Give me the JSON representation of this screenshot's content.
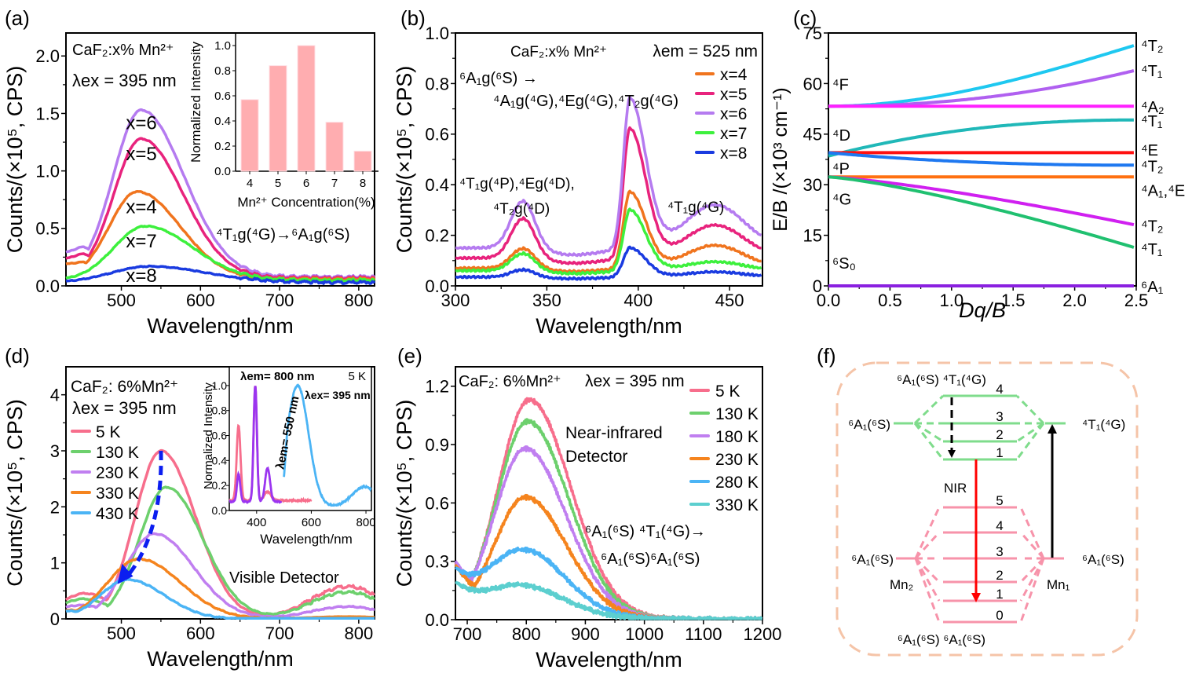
{
  "chart_data": [
    {
      "panel": "(a)",
      "type": "line",
      "title": "",
      "xlabel": "Wavelength/nm",
      "ylabel": "Counts/(×10⁵, CPS)",
      "xlim": [
        430,
        820
      ],
      "ylim": [
        0,
        2.2
      ],
      "xticks": [
        500,
        600,
        700,
        800
      ],
      "yticks": [
        0.0,
        0.5,
        1.0,
        1.5,
        2.0
      ],
      "ytick_labels": [
        "0.0",
        "0.5",
        "1.0",
        "1.5",
        "2.0"
      ],
      "annotations": {
        "sample": "CaF₂:x% Mn²⁺",
        "excitation": "λex = 395 nm",
        "transition": "⁴T₁g(⁴G)→⁶A₁g(⁶S)"
      },
      "series": [
        {
          "name": "x=6",
          "label": "x=6",
          "color": "#b57bf0",
          "peak_nm": 525,
          "peak": 1.53,
          "width": 45,
          "base_start": 0.27,
          "tail": 0.08,
          "shoulder": 0.12
        },
        {
          "name": "x=5",
          "label": "x=5",
          "color": "#e8237d",
          "peak_nm": 525,
          "peak": 1.28,
          "width": 44,
          "base_start": 0.22,
          "tail": 0.07,
          "shoulder": 0.1
        },
        {
          "name": "x=4",
          "label": "x=4",
          "color": "#f0741e",
          "peak_nm": 520,
          "peak": 0.82,
          "width": 45,
          "base_start": 0.18,
          "tail": 0.06,
          "shoulder": 0.06
        },
        {
          "name": "x=7",
          "label": "x=7",
          "color": "#3df03d",
          "peak_nm": 530,
          "peak": 0.52,
          "width": 50,
          "base_start": 0.05,
          "tail": 0.05,
          "shoulder": 0.0
        },
        {
          "name": "x=8",
          "label": "x=8",
          "color": "#1a3be0",
          "peak_nm": 535,
          "peak": 0.17,
          "width": 60,
          "base_start": 0.04,
          "tail": 0.03,
          "shoulder": 0.0
        }
      ],
      "inset": {
        "type": "bar",
        "xlabel": "Mn²⁺ Concentration(%)",
        "ylabel": "Normalized Intensity",
        "categories": [
          "4",
          "5",
          "6",
          "7",
          "8"
        ],
        "values": [
          0.57,
          0.84,
          1.0,
          0.39,
          0.16
        ],
        "ylim": [
          0,
          1.1
        ],
        "yticks": [
          "0.0",
          "0.2",
          "0.4",
          "0.6",
          "0.8",
          "1.0"
        ],
        "color": "#ffadb0"
      }
    },
    {
      "panel": "(b)",
      "type": "line",
      "xlabel": "Wavelength/nm",
      "ylabel": "Counts/(×10⁵, CPS)",
      "xlim": [
        300,
        468
      ],
      "ylim": [
        0,
        1.0
      ],
      "xticks": [
        300,
        350,
        400,
        450
      ],
      "yticks": [
        0.0,
        0.2,
        0.4,
        0.6,
        0.8,
        1.0
      ],
      "ytick_labels": [
        "0.0",
        "0.2",
        "0.4",
        "0.6",
        "0.8",
        "1.0"
      ],
      "annotations": {
        "sample": "CaF₂:x% Mn²⁺",
        "emission": "λem = 525 nm",
        "transition_line1": "⁶A₁g(⁶S) →",
        "transition_line2": "⁴A₁g(⁴G),⁴Eg(⁴G),⁴T₂g(⁴G)",
        "band1_line1": "⁴T₁g(⁴P),⁴Eg(⁴D),",
        "band1_line2": "⁴T₂g(⁴D)",
        "band3": "⁴T₁g(⁴G)"
      },
      "legend_position": "top-right",
      "series": [
        {
          "name": "x=4",
          "color": "#f0741e",
          "base": 0.07,
          "p1": 0.15,
          "p2": 0.37,
          "p3": 0.16,
          "end": 0.11
        },
        {
          "name": "x=5",
          "color": "#e8237d",
          "base": 0.11,
          "p1": 0.27,
          "p2": 0.62,
          "p3": 0.24,
          "end": 0.14
        },
        {
          "name": "x=6",
          "color": "#b57bf0",
          "base": 0.15,
          "p1": 0.34,
          "p2": 0.74,
          "p3": 0.32,
          "end": 0.22
        },
        {
          "name": "x=7",
          "color": "#3df03d",
          "base": 0.06,
          "p1": 0.13,
          "p2": 0.3,
          "p3": 0.095,
          "end": 0.05
        },
        {
          "name": "x=8",
          "color": "#1a3be0",
          "base": 0.035,
          "p1": 0.065,
          "p2": 0.15,
          "p3": 0.055,
          "end": 0.03
        }
      ]
    },
    {
      "panel": "(c)",
      "type": "line",
      "xlabel": "Dq/B",
      "ylabel": "E/B /(×10³ cm⁻¹)",
      "xlim": [
        0,
        2.5
      ],
      "ylim": [
        0,
        75
      ],
      "xticks": [
        "0.0",
        "0.5",
        "1.0",
        "1.5",
        "2.0",
        "2.5"
      ],
      "yticks": [
        "0",
        "15",
        "30",
        "45",
        "60",
        "75"
      ],
      "left_labels": [
        {
          "text": "⁴F",
          "y": 60
        },
        {
          "text": "⁴D",
          "y": 45
        },
        {
          "text": "⁴P",
          "y": 35
        },
        {
          "text": "⁴G",
          "y": 26
        },
        {
          "text": "⁶S₀",
          "y": 7
        }
      ],
      "series": [
        {
          "name": "⁴T₂",
          "color": "#1ec8f0",
          "y0": 53.3,
          "y_end": 71.5,
          "shape": "rise"
        },
        {
          "name": "⁴T₁",
          "color": "#b060f0",
          "y0": 53.3,
          "y_end": 64.0,
          "shape": "late-rise"
        },
        {
          "name": "⁴A₂",
          "color": "#ff20ff",
          "y0": 53.3,
          "y_end": 53.3,
          "shape": "flat"
        },
        {
          "name": "⁴T₁",
          "color": "#20b8b8",
          "y0": 38.5,
          "y_end": 49.2,
          "shape": "saturate"
        },
        {
          "name": "⁴E",
          "color": "#ff1010",
          "y0": 39.5,
          "y_end": 39.5,
          "shape": "flat"
        },
        {
          "name": "⁴T₂",
          "color": "#1e78f0",
          "y0": 39.5,
          "y_end": 35.8,
          "shape": "saturate"
        },
        {
          "name": "⁴A₁,⁴E",
          "color": "#ff7010",
          "y0": 32.3,
          "y_end": 32.3,
          "shape": "flat"
        },
        {
          "name": "⁴T₂",
          "color": "#d020f0",
          "y0": 32.3,
          "y_end": 18.0,
          "shape": "fall"
        },
        {
          "name": "⁴T₁",
          "color": "#20c070",
          "y0": 32.3,
          "y_end": 11.2,
          "shape": "fall"
        },
        {
          "name": "⁶A₁",
          "color": "#8a20e0",
          "y0": 0,
          "y_end": 0,
          "shape": "flat"
        }
      ]
    },
    {
      "panel": "(d)",
      "type": "line",
      "xlabel": "Wavelength/nm",
      "ylabel": "Counts/(×10⁵, CPS)",
      "xlim": [
        430,
        820
      ],
      "ylim": [
        0,
        4.5
      ],
      "xticks": [
        500,
        600,
        700,
        800
      ],
      "yticks": [
        0,
        1,
        2,
        3,
        4
      ],
      "ytick_labels": [
        "0",
        "1",
        "2",
        "3",
        "4"
      ],
      "annotations": {
        "sample": "CaF₂: 6%Mn²⁺",
        "excitation": "λex = 395 nm",
        "detector": "Visible Detector"
      },
      "legend_position": "top-left",
      "series": [
        {
          "name": "5 K",
          "color": "#f76e8c",
          "peak_nm": 550,
          "peak": 3.0,
          "width": 40,
          "nir": 0.58,
          "low": 0.4
        },
        {
          "name": "130 K",
          "color": "#6dd06d",
          "peak_nm": 557,
          "peak": 2.35,
          "width": 42,
          "nir": 0.48,
          "low": 0.3
        },
        {
          "name": "230 K",
          "color": "#c07ff0",
          "peak_nm": 542,
          "peak": 1.52,
          "width": 45,
          "nir": 0.22,
          "low": 0.18
        },
        {
          "name": "330 K",
          "color": "#f5841e",
          "peak_nm": 522,
          "peak": 1.07,
          "width": 48,
          "nir": 0.04,
          "low": 0.08
        },
        {
          "name": "430 K",
          "color": "#4bb4f5",
          "peak_nm": 508,
          "peak": 0.7,
          "width": 42,
          "nir": 0.01,
          "low": 0.06
        }
      ],
      "inset": {
        "xlabel": "Wavelength/nm",
        "ylabel": "Normalized Intensity",
        "xlim": [
          300,
          820
        ],
        "ylim": [
          0,
          1.15
        ],
        "xticks": [
          "400",
          "600",
          "800"
        ],
        "yticks": [
          "0.0",
          "0.2",
          "0.4",
          "0.6",
          "0.8",
          "1.0"
        ],
        "temperature": "5 K",
        "labels": {
          "em800": "λem= 800 nm",
          "em550": "λem= 550 nm",
          "ex395": "λex= 395 nm"
        },
        "series": [
          {
            "name": "λem = 800 nm (excitation)",
            "color": "#f76e8c",
            "peaks": [
              [
                334,
                0.68,
                7
              ],
              [
                395,
                1.0,
                6
              ],
              [
                440,
                0.15,
                12
              ]
            ],
            "base": 0.08,
            "range": [
              300,
              600
            ]
          },
          {
            "name": "λem = 550 nm (excitation)",
            "color": "#9b35f0",
            "peaks": [
              [
                334,
                0.29,
                6
              ],
              [
                395,
                1.0,
                6
              ],
              [
                440,
                0.34,
                9
              ]
            ],
            "base": 0.07,
            "range": [
              300,
              490
            ]
          },
          {
            "name": "λex = 395 nm (emission)",
            "color": "#4bb4f5",
            "peaks": [
              [
                550,
                1.0,
                40
              ],
              [
                795,
                0.19,
                45
              ]
            ],
            "base": 0.03,
            "range": [
              500,
              820
            ]
          }
        ]
      }
    },
    {
      "panel": "(e)",
      "type": "line",
      "xlabel": "Wavelength/nm",
      "ylabel": "Counts/(×10⁵, CPS)",
      "xlim": [
        680,
        1200
      ],
      "ylim": [
        0,
        1.3
      ],
      "xticks": [
        700,
        800,
        900,
        1000,
        1100,
        1200
      ],
      "yticks": [
        0.0,
        0.3,
        0.6,
        0.9,
        1.2
      ],
      "ytick_labels": [
        "0.0",
        "0.3",
        "0.6",
        "0.9",
        "1.2"
      ],
      "annotations": {
        "sample": "CaF₂: 6%Mn²⁺",
        "excitation": "λex = 395 nm",
        "detector_line1": "Near-infrared",
        "detector_line2": "Detector",
        "transition_line1": "⁶A₁(⁶S) ⁴T₁(⁴G)→",
        "transition_line2": "⁶A₁(⁶S)⁶A₁(⁶S)"
      },
      "legend_position": "top-right",
      "series": [
        {
          "name": "5 K",
          "color": "#f76e8c",
          "peak_nm": 805,
          "peak": 1.12,
          "start": 0.28
        },
        {
          "name": "130 K",
          "color": "#6dd06d",
          "peak_nm": 802,
          "peak": 1.01,
          "start": 0.27
        },
        {
          "name": "180 K",
          "color": "#c07ff0",
          "peak_nm": 798,
          "peak": 0.87,
          "start": 0.29
        },
        {
          "name": "230 K",
          "color": "#f5841e",
          "peak_nm": 798,
          "peak": 0.62,
          "start": 0.27
        },
        {
          "name": "280 K",
          "color": "#4bb4f5",
          "peak_nm": 795,
          "peak": 0.35,
          "start": 0.23
        },
        {
          "name": "330 K",
          "color": "#5ccfcf",
          "peak_nm": 795,
          "peak": 0.16,
          "start": 0.17
        }
      ]
    }
  ],
  "diagram_f": {
    "panel": "(f)",
    "top_label": "⁶A₁(⁶S) ⁴T₁(⁴G)",
    "bottom_label": "⁶A₁(⁶S) ⁶A₁(⁶S)",
    "upper_left": "⁶A₁(⁶S)",
    "upper_right": "⁴T₁(⁴G)",
    "lower_left": "⁶A₁(⁶S)",
    "lower_right": "⁶A₁(⁶S)",
    "upper_levels": [
      "4",
      "3",
      "2",
      "1"
    ],
    "lower_levels": [
      "5",
      "4",
      "3",
      "2",
      "1",
      "0"
    ],
    "nir_label": "NIR",
    "mn2_label": "Mn₂",
    "mn1_label": "Mn₁",
    "colors": {
      "upper": "#7fdc8c",
      "lower": "#f793aa",
      "nir": "#ff0000",
      "frame": "#f5c4a8",
      "excite": "#000000"
    }
  }
}
